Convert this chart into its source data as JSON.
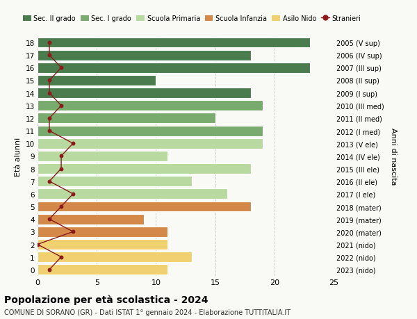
{
  "ages": [
    18,
    17,
    16,
    15,
    14,
    13,
    12,
    11,
    10,
    9,
    8,
    7,
    6,
    5,
    4,
    3,
    2,
    1,
    0
  ],
  "right_labels": [
    "2005 (V sup)",
    "2006 (IV sup)",
    "2007 (III sup)",
    "2008 (II sup)",
    "2009 (I sup)",
    "2010 (III med)",
    "2011 (II med)",
    "2012 (I med)",
    "2013 (V ele)",
    "2014 (IV ele)",
    "2015 (III ele)",
    "2016 (II ele)",
    "2017 (I ele)",
    "2018 (mater)",
    "2019 (mater)",
    "2020 (mater)",
    "2021 (nido)",
    "2022 (nido)",
    "2023 (nido)"
  ],
  "bar_values": [
    23,
    18,
    23,
    10,
    18,
    19,
    15,
    19,
    19,
    11,
    18,
    13,
    16,
    18,
    9,
    11,
    11,
    13,
    11
  ],
  "bar_colors": [
    "#4a7c4e",
    "#4a7c4e",
    "#4a7c4e",
    "#4a7c4e",
    "#4a7c4e",
    "#7aab6e",
    "#7aab6e",
    "#7aab6e",
    "#b8d9a0",
    "#b8d9a0",
    "#b8d9a0",
    "#b8d9a0",
    "#b8d9a0",
    "#d4894a",
    "#d4894a",
    "#d4894a",
    "#f0d070",
    "#f0d070",
    "#f0d070"
  ],
  "stranieri_values": [
    1,
    1,
    2,
    1,
    1,
    2,
    1,
    1,
    3,
    2,
    2,
    1,
    3,
    2,
    1,
    3,
    0,
    2,
    1
  ],
  "title": "Popolazione per età scolastica - 2024",
  "subtitle": "COMUNE DI SORANO (GR) - Dati ISTAT 1° gennaio 2024 - Elaborazione TUTTITALIA.IT",
  "ylabel_left": "Età alunni",
  "ylabel_right": "Anni di nascita",
  "xlim": [
    0,
    25
  ],
  "legend_labels": [
    "Sec. II grado",
    "Sec. I grado",
    "Scuola Primaria",
    "Scuola Infanzia",
    "Asilo Nido",
    "Stranieri"
  ],
  "legend_colors": [
    "#4a7c4e",
    "#7aab6e",
    "#b8d9a0",
    "#d4894a",
    "#f0d070",
    "#c0392b"
  ],
  "stranieri_line_color": "#8b1a1a",
  "bg_color": "#f9f9f5",
  "grid_color": "#cccccc"
}
